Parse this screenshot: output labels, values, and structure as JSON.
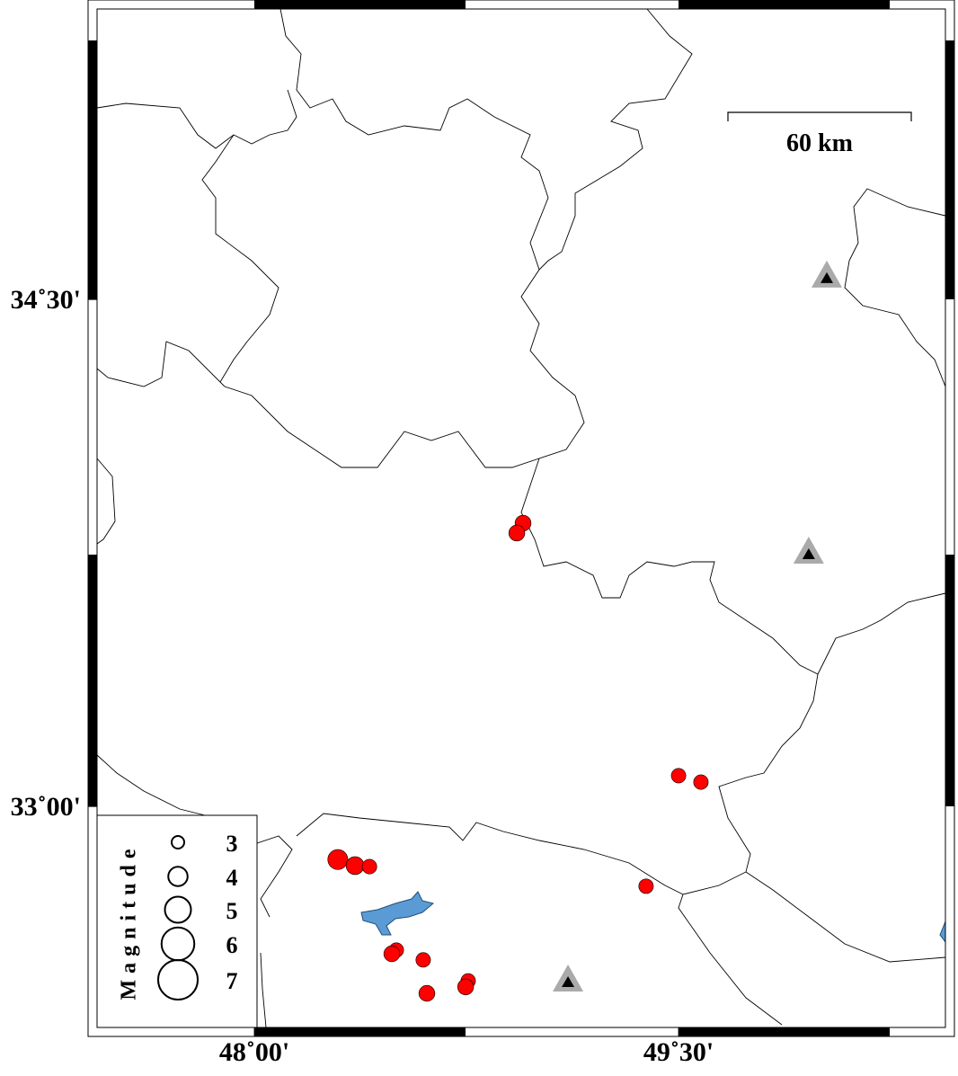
{
  "map": {
    "xticks": [
      {
        "value": 48,
        "label": "48˚00'"
      },
      {
        "value": 49.5,
        "label": "49˚30'"
      }
    ],
    "yticks": [
      {
        "value": 34.5,
        "label": "34˚30'"
      },
      {
        "value": 33,
        "label": "33˚00'"
      }
    ],
    "scale_bar": "60 km",
    "events": [
      {
        "lon": 48.95,
        "lat": 33.838,
        "mag": 3.5
      },
      {
        "lon": 48.928,
        "lat": 33.809,
        "mag": 3.5
      },
      {
        "lon": 49.5,
        "lat": 33.091,
        "mag": 3.3
      },
      {
        "lon": 49.579,
        "lat": 33.072,
        "mag": 3.3
      },
      {
        "lon": 48.295,
        "lat": 32.843,
        "mag": 4.1
      },
      {
        "lon": 48.356,
        "lat": 32.825,
        "mag": 3.8
      },
      {
        "lon": 48.407,
        "lat": 32.822,
        "mag": 3.3
      },
      {
        "lon": 49.385,
        "lat": 32.764,
        "mag": 3.3
      },
      {
        "lon": 48.502,
        "lat": 32.575,
        "mag": 3.3
      },
      {
        "lon": 48.486,
        "lat": 32.564,
        "mag": 3.5
      },
      {
        "lon": 48.597,
        "lat": 32.546,
        "mag": 3.3
      },
      {
        "lon": 48.756,
        "lat": 32.484,
        "mag": 3.3
      },
      {
        "lon": 48.747,
        "lat": 32.466,
        "mag": 3.5
      },
      {
        "lon": 48.61,
        "lat": 32.447,
        "mag": 3.5
      }
    ],
    "stations": [
      {
        "lon": 50.024,
        "lat": 34.562
      },
      {
        "lon": 49.96,
        "lat": 33.745
      },
      {
        "lon": 49.109,
        "lat": 32.479
      }
    ],
    "legend": {
      "title": "Magnitude",
      "sizes": [
        3,
        4,
        5,
        6,
        7
      ]
    }
  }
}
